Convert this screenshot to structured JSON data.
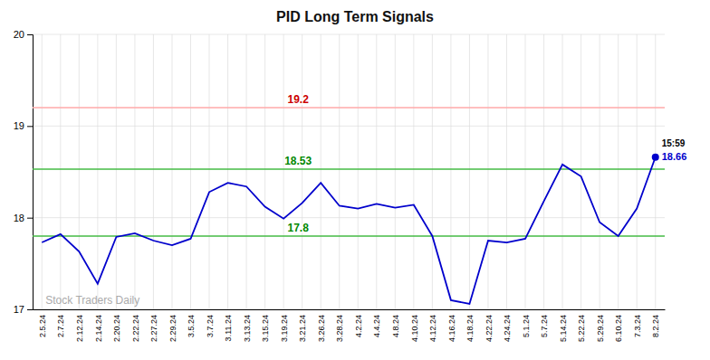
{
  "chart_data": {
    "type": "line",
    "title": "PID Long Term Signals",
    "categories": [
      "2.5.24",
      "2.7.24",
      "2.12.24",
      "2.14.24",
      "2.20.24",
      "2.22.24",
      "2.27.24",
      "2.29.24",
      "3.5.24",
      "3.7.24",
      "3.11.24",
      "3.13.24",
      "3.15.24",
      "3.19.24",
      "3.21.24",
      "3.26.24",
      "3.28.24",
      "4.2.24",
      "4.4.24",
      "4.8.24",
      "4.10.24",
      "4.12.24",
      "4.16.24",
      "4.18.24",
      "4.22.24",
      "4.24.24",
      "5.1.24",
      "5.7.24",
      "5.14.24",
      "5.22.24",
      "5.29.24",
      "6.10.24",
      "7.3.24",
      "8.2.24"
    ],
    "values": [
      17.73,
      17.82,
      17.63,
      17.28,
      17.79,
      17.83,
      17.75,
      17.7,
      17.77,
      18.28,
      18.38,
      18.34,
      18.12,
      17.99,
      18.16,
      18.38,
      18.13,
      18.1,
      18.15,
      18.11,
      18.14,
      17.8,
      17.1,
      17.06,
      17.75,
      17.73,
      17.77,
      18.18,
      18.58,
      18.45,
      17.95,
      17.8,
      18.1,
      18.66
    ],
    "color": "#0000cc",
    "ylim": [
      17,
      20
    ],
    "yticks": [
      17,
      18,
      19,
      20
    ],
    "grid": true,
    "hlines": [
      {
        "value": 19.2,
        "label": "19.2",
        "color": "#ffaaaa",
        "label_color": "#cc0000"
      },
      {
        "value": 18.53,
        "label": "18.53",
        "color": "#44bb44",
        "label_color": "#008800"
      },
      {
        "value": 17.8,
        "label": "17.8",
        "color": "#44bb44",
        "label_color": "#008800"
      }
    ],
    "annotations": [
      {
        "text": "15:59",
        "color": "#000000"
      },
      {
        "text": "18.66",
        "color": "#0000cc"
      }
    ],
    "watermark": {
      "text": "Stock Traders Daily",
      "color": "#aaaaaa"
    }
  }
}
